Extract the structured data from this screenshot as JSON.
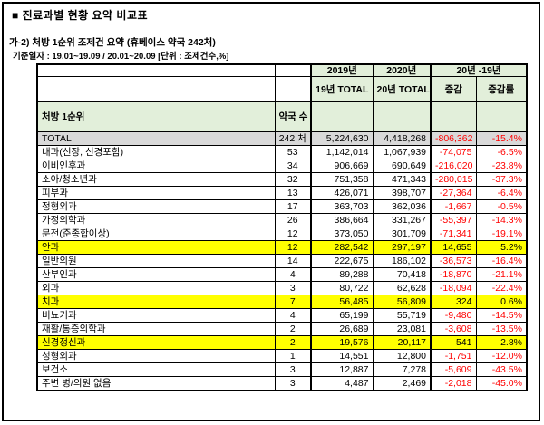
{
  "page": {
    "title": "■  진료과별 현황 요약 비교표",
    "subtitle": "가-2) 처방 1순위 조제건 요약 (휴베이스 약국 242처)",
    "date_note": "기준일자 : 19.01~19.09 / 20.01~20.09 [단위 : 조제건수,%]"
  },
  "colors": {
    "header_bg": "#e2efda",
    "total_bg": "#d9d9d9",
    "highlight_bg": "#ffff00",
    "negative": "#ff0000",
    "border": "#000000"
  },
  "table": {
    "col_group_headers": [
      "2019년",
      "2020년",
      "20년 -19년"
    ],
    "sub_headers": [
      "19년\nTOTAL",
      "20년\nTOTAL",
      "증감",
      "증감률"
    ],
    "row_header_label": "처방 1순위",
    "pharmacy_count_label": "약국\n수",
    "total_row": {
      "name": "TOTAL",
      "pharmacies": "242 처",
      "y2019": "5,224,630",
      "y2020": "4,418,268",
      "change": "-806,362",
      "change_rate": "-15.4%"
    },
    "rows": [
      {
        "name": "내과(신장, 신경포함)",
        "pharmacies": "53",
        "y2019": "1,142,014",
        "y2020": "1,067,939",
        "change": "-74,075",
        "change_rate": "-6.5%",
        "highlight": false
      },
      {
        "name": "이비인후과",
        "pharmacies": "34",
        "y2019": "906,669",
        "y2020": "690,649",
        "change": "-216,020",
        "change_rate": "-23.8%",
        "highlight": false
      },
      {
        "name": "소아/청소년과",
        "pharmacies": "32",
        "y2019": "751,358",
        "y2020": "471,343",
        "change": "-280,015",
        "change_rate": "-37.3%",
        "highlight": false
      },
      {
        "name": "피부과",
        "pharmacies": "13",
        "y2019": "426,071",
        "y2020": "398,707",
        "change": "-27,364",
        "change_rate": "-6.4%",
        "highlight": false
      },
      {
        "name": "정형외과",
        "pharmacies": "17",
        "y2019": "363,703",
        "y2020": "362,036",
        "change": "-1,667",
        "change_rate": "-0.5%",
        "highlight": false
      },
      {
        "name": "가정의학과",
        "pharmacies": "26",
        "y2019": "386,664",
        "y2020": "331,267",
        "change": "-55,397",
        "change_rate": "-14.3%",
        "highlight": false
      },
      {
        "name": "문전(준종합이상)",
        "pharmacies": "12",
        "y2019": "373,050",
        "y2020": "301,709",
        "change": "-71,341",
        "change_rate": "-19.1%",
        "highlight": false
      },
      {
        "name": "안과",
        "pharmacies": "12",
        "y2019": "282,542",
        "y2020": "297,197",
        "change": "14,655",
        "change_rate": "5.2%",
        "highlight": true
      },
      {
        "name": "일반의원",
        "pharmacies": "14",
        "y2019": "222,675",
        "y2020": "186,102",
        "change": "-36,573",
        "change_rate": "-16.4%",
        "highlight": false
      },
      {
        "name": "산부인과",
        "pharmacies": "4",
        "y2019": "89,288",
        "y2020": "70,418",
        "change": "-18,870",
        "change_rate": "-21.1%",
        "highlight": false
      },
      {
        "name": "외과",
        "pharmacies": "3",
        "y2019": "80,722",
        "y2020": "62,628",
        "change": "-18,094",
        "change_rate": "-22.4%",
        "highlight": false
      },
      {
        "name": "치과",
        "pharmacies": "7",
        "y2019": "56,485",
        "y2020": "56,809",
        "change": "324",
        "change_rate": "0.6%",
        "highlight": true
      },
      {
        "name": "비뇨기과",
        "pharmacies": "4",
        "y2019": "65,199",
        "y2020": "55,719",
        "change": "-9,480",
        "change_rate": "-14.5%",
        "highlight": false
      },
      {
        "name": "재활/통증의학과",
        "pharmacies": "2",
        "y2019": "26,689",
        "y2020": "23,081",
        "change": "-3,608",
        "change_rate": "-13.5%",
        "highlight": false
      },
      {
        "name": "신경정신과",
        "pharmacies": "2",
        "y2019": "19,576",
        "y2020": "20,117",
        "change": "541",
        "change_rate": "2.8%",
        "highlight": true
      },
      {
        "name": "성형외과",
        "pharmacies": "1",
        "y2019": "14,551",
        "y2020": "12,800",
        "change": "-1,751",
        "change_rate": "-12.0%",
        "highlight": false
      },
      {
        "name": "보건소",
        "pharmacies": "3",
        "y2019": "12,887",
        "y2020": "7,278",
        "change": "-5,609",
        "change_rate": "-43.5%",
        "highlight": false
      },
      {
        "name": "주변 병/의원 없음",
        "pharmacies": "3",
        "y2019": "4,487",
        "y2020": "2,469",
        "change": "-2,018",
        "change_rate": "-45.0%",
        "highlight": false
      }
    ]
  }
}
